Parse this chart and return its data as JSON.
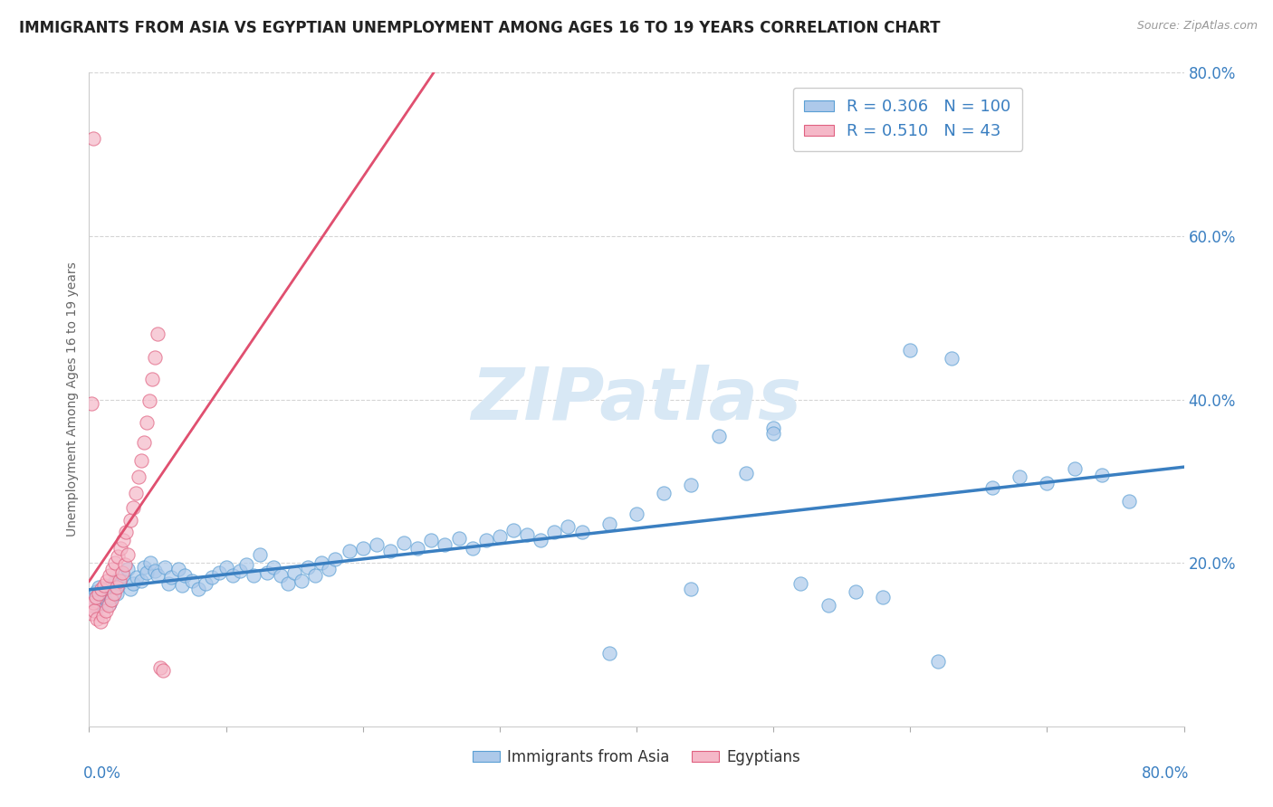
{
  "title": "IMMIGRANTS FROM ASIA VS EGYPTIAN UNEMPLOYMENT AMONG AGES 16 TO 19 YEARS CORRELATION CHART",
  "source_text": "Source: ZipAtlas.com",
  "ylabel": "Unemployment Among Ages 16 to 19 years",
  "legend_entries": [
    {
      "label": "Immigrants from Asia",
      "color": "#adc9ea",
      "edge_color": "#5a9fd4",
      "R": 0.306,
      "N": 100
    },
    {
      "label": "Egyptians",
      "color": "#f5b8c8",
      "edge_color": "#e06080",
      "R": 0.51,
      "N": 43
    }
  ],
  "xlim": [
    0.0,
    0.8
  ],
  "ylim": [
    0.0,
    0.8
  ],
  "y_ticks_right": [
    0.2,
    0.4,
    0.6,
    0.8
  ],
  "y_tick_labels_right": [
    "20.0%",
    "40.0%",
    "60.0%",
    "80.0%"
  ],
  "title_fontsize": 12,
  "axis_label_fontsize": 10,
  "tick_fontsize": 12,
  "watermark_text": "ZIPatlas",
  "background_color": "#ffffff",
  "grid_color": "#d5d5d5",
  "blue_color": "#adc9ea",
  "blue_edge": "#5a9fd4",
  "pink_color": "#f5b8c8",
  "pink_edge": "#e06080",
  "trend_blue_color": "#3a7fc1",
  "trend_pink_color": "#e05070",
  "R_blue": 0.306,
  "N_blue": 100,
  "R_pink": 0.51,
  "N_pink": 43,
  "blue_scatter_x": [
    0.002,
    0.003,
    0.004,
    0.005,
    0.006,
    0.007,
    0.008,
    0.009,
    0.01,
    0.011,
    0.012,
    0.013,
    0.014,
    0.015,
    0.016,
    0.017,
    0.018,
    0.019,
    0.02,
    0.022,
    0.025,
    0.028,
    0.03,
    0.032,
    0.035,
    0.038,
    0.04,
    0.042,
    0.045,
    0.048,
    0.05,
    0.055,
    0.058,
    0.06,
    0.065,
    0.068,
    0.07,
    0.075,
    0.08,
    0.085,
    0.09,
    0.095,
    0.1,
    0.105,
    0.11,
    0.115,
    0.12,
    0.125,
    0.13,
    0.135,
    0.14,
    0.145,
    0.15,
    0.155,
    0.16,
    0.165,
    0.17,
    0.175,
    0.18,
    0.19,
    0.2,
    0.21,
    0.22,
    0.23,
    0.24,
    0.25,
    0.26,
    0.27,
    0.28,
    0.29,
    0.3,
    0.31,
    0.32,
    0.33,
    0.34,
    0.35,
    0.36,
    0.38,
    0.4,
    0.42,
    0.44,
    0.46,
    0.48,
    0.5,
    0.52,
    0.54,
    0.56,
    0.58,
    0.6,
    0.63,
    0.66,
    0.68,
    0.7,
    0.72,
    0.74,
    0.5,
    0.44,
    0.38,
    0.62,
    0.76
  ],
  "blue_scatter_y": [
    0.155,
    0.148,
    0.16,
    0.165,
    0.145,
    0.17,
    0.155,
    0.162,
    0.15,
    0.158,
    0.168,
    0.155,
    0.162,
    0.15,
    0.158,
    0.172,
    0.165,
    0.178,
    0.162,
    0.175,
    0.185,
    0.192,
    0.168,
    0.175,
    0.182,
    0.178,
    0.195,
    0.188,
    0.2,
    0.19,
    0.185,
    0.195,
    0.175,
    0.182,
    0.192,
    0.172,
    0.185,
    0.178,
    0.168,
    0.175,
    0.182,
    0.188,
    0.195,
    0.185,
    0.19,
    0.198,
    0.185,
    0.21,
    0.188,
    0.195,
    0.185,
    0.175,
    0.188,
    0.178,
    0.195,
    0.185,
    0.2,
    0.192,
    0.205,
    0.215,
    0.218,
    0.222,
    0.215,
    0.225,
    0.218,
    0.228,
    0.222,
    0.23,
    0.218,
    0.228,
    0.232,
    0.24,
    0.235,
    0.228,
    0.238,
    0.245,
    0.238,
    0.248,
    0.26,
    0.285,
    0.295,
    0.355,
    0.31,
    0.365,
    0.175,
    0.148,
    0.165,
    0.158,
    0.46,
    0.45,
    0.292,
    0.305,
    0.298,
    0.315,
    0.308,
    0.358,
    0.168,
    0.09,
    0.08,
    0.275
  ],
  "pink_scatter_x": [
    0.001,
    0.002,
    0.003,
    0.004,
    0.005,
    0.006,
    0.007,
    0.008,
    0.009,
    0.01,
    0.011,
    0.012,
    0.013,
    0.014,
    0.015,
    0.016,
    0.017,
    0.018,
    0.019,
    0.02,
    0.021,
    0.022,
    0.023,
    0.024,
    0.025,
    0.026,
    0.027,
    0.028,
    0.03,
    0.032,
    0.034,
    0.036,
    0.038,
    0.04,
    0.042,
    0.044,
    0.046,
    0.048,
    0.05,
    0.052,
    0.054,
    0.003,
    0.002
  ],
  "pink_scatter_y": [
    0.148,
    0.138,
    0.152,
    0.142,
    0.158,
    0.132,
    0.162,
    0.128,
    0.168,
    0.135,
    0.172,
    0.142,
    0.178,
    0.148,
    0.185,
    0.155,
    0.192,
    0.162,
    0.2,
    0.17,
    0.208,
    0.178,
    0.218,
    0.188,
    0.228,
    0.198,
    0.238,
    0.21,
    0.252,
    0.268,
    0.285,
    0.305,
    0.325,
    0.348,
    0.372,
    0.398,
    0.425,
    0.452,
    0.48,
    0.072,
    0.068,
    0.72,
    0.395
  ]
}
